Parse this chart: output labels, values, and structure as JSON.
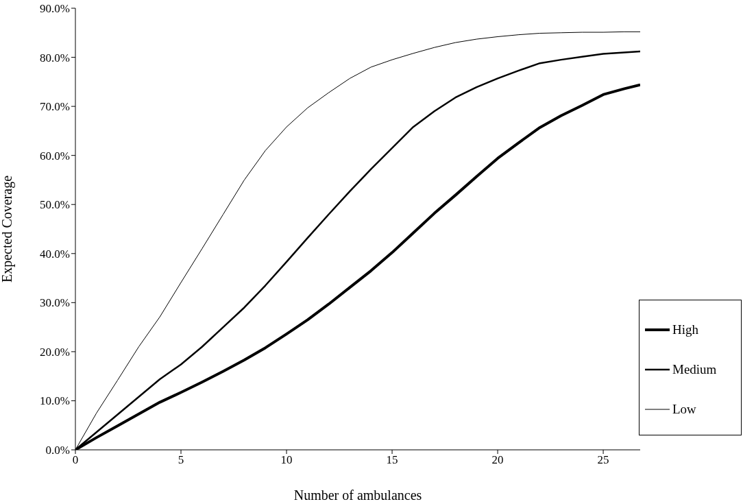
{
  "chart_data": {
    "type": "line",
    "xlabel": "Number of ambulances",
    "ylabel": "Expected Coverage",
    "x": [
      0,
      1,
      2,
      3,
      4,
      5,
      6,
      7,
      8,
      9,
      10,
      11,
      12,
      13,
      14,
      15,
      16,
      17,
      18,
      19,
      20,
      21,
      22,
      23,
      24,
      25,
      26,
      26.75
    ],
    "series": [
      {
        "name": "High",
        "color": "#000000",
        "values": [
          0,
          2.5,
          4.9,
          7.3,
          9.7,
          11.7,
          13.8,
          16,
          18.3,
          20.8,
          23.6,
          26.5,
          29.7,
          33.1,
          36.5,
          40.2,
          44.2,
          48.2,
          51.9,
          55.7,
          59.4,
          62.6,
          65.7,
          68.1,
          70.2,
          72.4,
          73.6,
          74.4
        ]
      },
      {
        "name": "Medium",
        "color": "#000000",
        "values": [
          0,
          3.6,
          7.2,
          10.8,
          14.4,
          17.4,
          21,
          25,
          29,
          33.5,
          38.3,
          43.2,
          48,
          52.7,
          57.2,
          61.5,
          65.8,
          69,
          71.8,
          73.9,
          75.7,
          77.3,
          78.8,
          79.5,
          80.1,
          80.7,
          81,
          81.2
        ]
      },
      {
        "name": "Low",
        "color": "#000000",
        "values": [
          0,
          7.5,
          14.2,
          21,
          27.1,
          34.1,
          41,
          48,
          55,
          61,
          65.8,
          69.7,
          72.8,
          75.7,
          78,
          79.5,
          80.8,
          82,
          83,
          83.7,
          84.2,
          84.6,
          84.9,
          85,
          85.1,
          85.1,
          85.2,
          85.2
        ]
      }
    ],
    "xlim": [
      0,
      26.75
    ],
    "xticks": [
      0,
      5,
      10,
      15,
      20,
      25
    ],
    "ylim": [
      0,
      90
    ],
    "yticks": [
      {
        "value": 0,
        "label": "0.0%"
      },
      {
        "value": 10,
        "label": "10.0%"
      },
      {
        "value": 20,
        "label": "20.0%"
      },
      {
        "value": 30,
        "label": "30.0%"
      },
      {
        "value": 40,
        "label": "40.0%"
      },
      {
        "value": 50,
        "label": "50.0%"
      },
      {
        "value": 60,
        "label": "60.0%"
      },
      {
        "value": 70,
        "label": "70.0%"
      },
      {
        "value": 80,
        "label": "80.0%"
      },
      {
        "value": 90,
        "label": "90.0%"
      }
    ],
    "grid": false,
    "legend": "bottom right",
    "marker": "none",
    "line_style": "solid"
  }
}
